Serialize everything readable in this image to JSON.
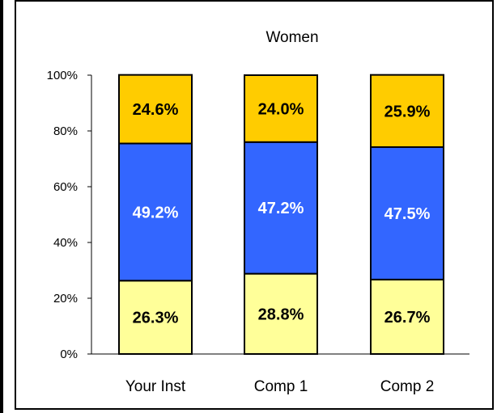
{
  "chart_data": {
    "type": "bar",
    "stacked": true,
    "title": "Women",
    "categories": [
      "Your Inst",
      "Comp 1",
      "Comp 2"
    ],
    "series": [
      {
        "values": [
          26.3,
          28.8,
          26.7
        ],
        "labels": [
          "26.3%",
          "28.8%",
          "26.7%"
        ],
        "color": "#ffff99",
        "label_color": "#000000"
      },
      {
        "values": [
          49.2,
          47.2,
          47.5
        ],
        "labels": [
          "49.2%",
          "47.2%",
          "47.5%"
        ],
        "color": "#3366ff",
        "label_color": "#ffffff"
      },
      {
        "values": [
          24.6,
          24.0,
          25.9
        ],
        "labels": [
          "24.6%",
          "24.0%",
          "25.9%"
        ],
        "color": "#ffcc00",
        "label_color": "#000000"
      }
    ],
    "ylim": [
      0,
      100
    ],
    "yticks": [
      0,
      20,
      40,
      60,
      80,
      100
    ],
    "ytick_labels": [
      "0%",
      "20%",
      "40%",
      "60%",
      "80%",
      "100%"
    ],
    "grid": false,
    "legend": "none"
  }
}
